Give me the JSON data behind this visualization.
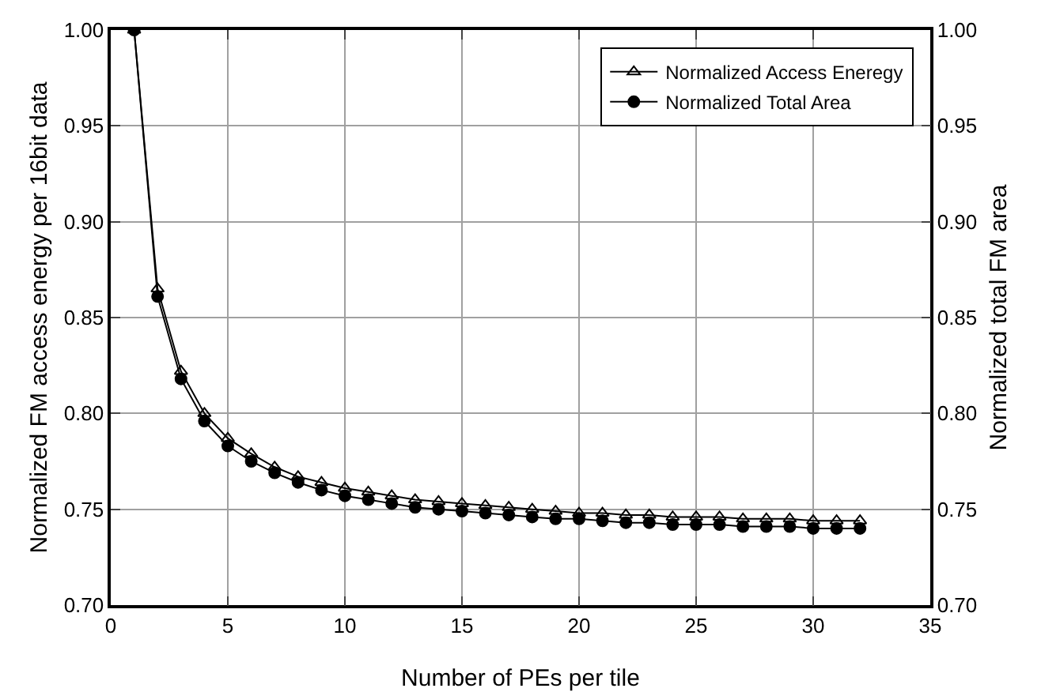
{
  "chart_data": {
    "type": "line",
    "xlabel": "Number of PEs per tile",
    "ylabel": "Normalized FM access energy per 16bit data",
    "y2label": "Normalized total FM area",
    "x": [
      1,
      2,
      3,
      4,
      5,
      6,
      7,
      8,
      9,
      10,
      11,
      12,
      13,
      14,
      15,
      16,
      17,
      18,
      19,
      20,
      21,
      22,
      23,
      24,
      25,
      26,
      27,
      28,
      29,
      30,
      31,
      32
    ],
    "series": [
      {
        "name": "Normalized Access Eneregy",
        "color": "#000000",
        "marker": "triangle",
        "values": [
          1,
          0.865,
          0.822,
          0.8,
          0.787,
          0.779,
          0.772,
          0.767,
          0.764,
          0.761,
          0.759,
          0.757,
          0.755,
          0.754,
          0.753,
          0.752,
          0.751,
          0.75,
          0.749,
          0.748,
          0.748,
          0.747,
          0.747,
          0.746,
          0.746,
          0.746,
          0.745,
          0.745,
          0.745,
          0.744,
          0.744,
          0.744
        ]
      },
      {
        "name": "Normalized Total Area",
        "color": "#000000",
        "marker": "circle",
        "values": [
          1,
          0.861,
          0.818,
          0.796,
          0.783,
          0.775,
          0.769,
          0.764,
          0.76,
          0.757,
          0.755,
          0.753,
          0.751,
          0.75,
          0.749,
          0.748,
          0.747,
          0.746,
          0.745,
          0.745,
          0.744,
          0.743,
          0.743,
          0.742,
          0.742,
          0.742,
          0.741,
          0.741,
          0.741,
          0.74,
          0.74,
          0.74
        ]
      }
    ],
    "xlim": [
      0,
      35
    ],
    "xticks": [
      0,
      5,
      10,
      15,
      20,
      25,
      30,
      35
    ],
    "ylim": [
      0.7,
      1.0
    ],
    "yticks": [
      {
        "value": 0.7,
        "label": "0.70"
      },
      {
        "value": 0.75,
        "label": "0.75"
      },
      {
        "value": 0.8,
        "label": "0.80"
      },
      {
        "value": 0.85,
        "label": "0.85"
      },
      {
        "value": 0.9,
        "label": "0.90"
      },
      {
        "value": 0.95,
        "label": "0.95"
      },
      {
        "value": 1,
        "label": "1.00"
      }
    ],
    "y2lim": [
      0.7,
      1.0
    ],
    "y2ticks": [
      {
        "value": 0.7,
        "label": "0.70"
      },
      {
        "value": 0.75,
        "label": "0.75"
      },
      {
        "value": 0.8,
        "label": "0.80"
      },
      {
        "value": 0.85,
        "label": "0.85"
      },
      {
        "value": 0.9,
        "label": "0.90"
      },
      {
        "value": 0.95,
        "label": "0.95"
      },
      {
        "value": 1,
        "label": "1.00"
      }
    ],
    "grid": true,
    "legend": "top right",
    "line_style": "solid"
  }
}
